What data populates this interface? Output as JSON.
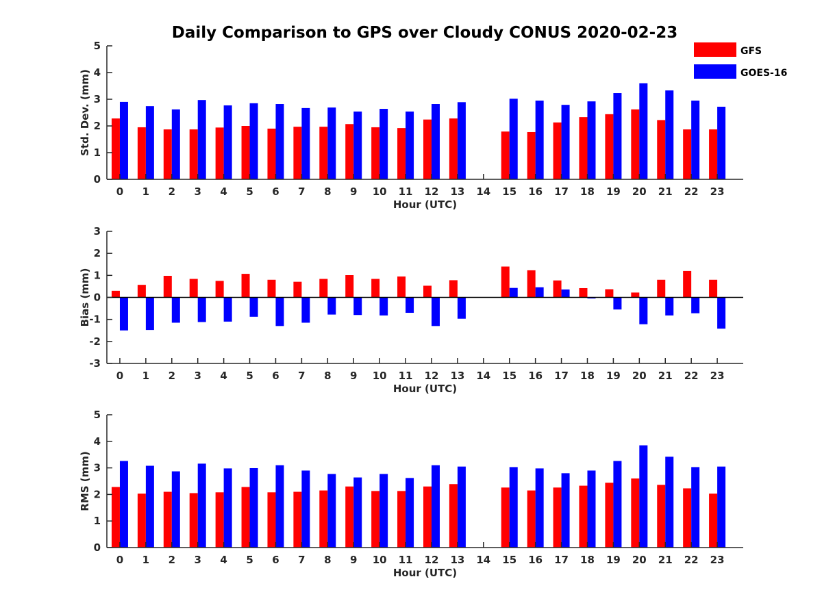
{
  "title": "Daily Comparison to GPS over Cloudy CONUS 2020-02-23",
  "legend": [
    {
      "name": "GFS",
      "color": "#ff0000"
    },
    {
      "name": "GOES-16",
      "color": "#0000ff"
    }
  ],
  "legend_placement": "top-right",
  "chart_data": [
    {
      "type": "bar",
      "xlabel": "Hour (UTC)",
      "ylabel": "Std. Dev. (mm)",
      "ylim": [
        0,
        5
      ],
      "yticks": [
        0,
        1,
        2,
        3,
        4,
        5
      ],
      "grid": false,
      "categories": [
        "0",
        "1",
        "2",
        "3",
        "4",
        "5",
        "6",
        "7",
        "8",
        "9",
        "10",
        "11",
        "12",
        "13",
        "14",
        "15",
        "16",
        "17",
        "18",
        "19",
        "20",
        "21",
        "22",
        "23"
      ],
      "series": [
        {
          "name": "GFS",
          "color": "#ff0000",
          "values": [
            2.28,
            1.95,
            1.87,
            1.87,
            1.94,
            2.0,
            1.9,
            1.97,
            1.97,
            2.07,
            1.95,
            1.92,
            2.24,
            2.28,
            null,
            1.79,
            1.77,
            2.13,
            2.33,
            2.44,
            2.62,
            2.22,
            1.87,
            1.87
          ]
        },
        {
          "name": "GOES-16",
          "color": "#0000ff",
          "values": [
            2.9,
            2.74,
            2.62,
            2.97,
            2.77,
            2.85,
            2.82,
            2.67,
            2.69,
            2.54,
            2.64,
            2.54,
            2.82,
            2.89,
            null,
            3.02,
            2.95,
            2.79,
            2.92,
            3.23,
            3.6,
            3.33,
            2.95,
            2.72
          ]
        }
      ]
    },
    {
      "type": "bar",
      "xlabel": "Hour (UTC)",
      "ylabel": "Bias (mm)",
      "ylim": [
        -3,
        3
      ],
      "yticks": [
        -3,
        -2,
        -1,
        0,
        1,
        2,
        3
      ],
      "grid": false,
      "categories": [
        "0",
        "1",
        "2",
        "3",
        "4",
        "5",
        "6",
        "7",
        "8",
        "9",
        "10",
        "11",
        "12",
        "13",
        "14",
        "15",
        "16",
        "17",
        "18",
        "19",
        "20",
        "21",
        "22",
        "23"
      ],
      "series": [
        {
          "name": "GFS",
          "color": "#ff0000",
          "values": [
            0.3,
            0.57,
            0.98,
            0.84,
            0.75,
            1.07,
            0.8,
            0.71,
            0.84,
            1.01,
            0.84,
            0.95,
            0.53,
            0.78,
            null,
            1.4,
            1.23,
            0.77,
            0.42,
            0.37,
            0.22,
            0.8,
            1.2,
            0.8
          ]
        },
        {
          "name": "GOES-16",
          "color": "#0000ff",
          "values": [
            -1.5,
            -1.48,
            -1.15,
            -1.12,
            -1.1,
            -0.88,
            -1.3,
            -1.15,
            -0.78,
            -0.8,
            -0.82,
            -0.7,
            -1.3,
            -0.97,
            null,
            0.43,
            0.46,
            0.36,
            -0.05,
            -0.55,
            -1.22,
            -0.82,
            -0.72,
            -1.42
          ]
        }
      ]
    },
    {
      "type": "bar",
      "xlabel": "Hour (UTC)",
      "ylabel": "RMS (mm)",
      "ylim": [
        0,
        5
      ],
      "yticks": [
        0,
        1,
        2,
        3,
        4,
        5
      ],
      "grid": false,
      "categories": [
        "0",
        "1",
        "2",
        "3",
        "4",
        "5",
        "6",
        "7",
        "8",
        "9",
        "10",
        "11",
        "12",
        "13",
        "14",
        "15",
        "16",
        "17",
        "18",
        "19",
        "20",
        "21",
        "22",
        "23"
      ],
      "series": [
        {
          "name": "GFS",
          "color": "#ff0000",
          "values": [
            2.28,
            2.03,
            2.1,
            2.05,
            2.08,
            2.28,
            2.08,
            2.1,
            2.15,
            2.3,
            2.13,
            2.13,
            2.3,
            2.39,
            null,
            2.26,
            2.15,
            2.26,
            2.33,
            2.44,
            2.6,
            2.36,
            2.23,
            2.03
          ]
        },
        {
          "name": "GOES-16",
          "color": "#0000ff",
          "values": [
            3.26,
            3.08,
            2.87,
            3.16,
            2.98,
            2.99,
            3.1,
            2.9,
            2.77,
            2.64,
            2.77,
            2.62,
            3.1,
            3.05,
            null,
            3.03,
            2.98,
            2.8,
            2.9,
            3.26,
            3.85,
            3.42,
            3.03,
            3.05
          ]
        }
      ]
    }
  ]
}
